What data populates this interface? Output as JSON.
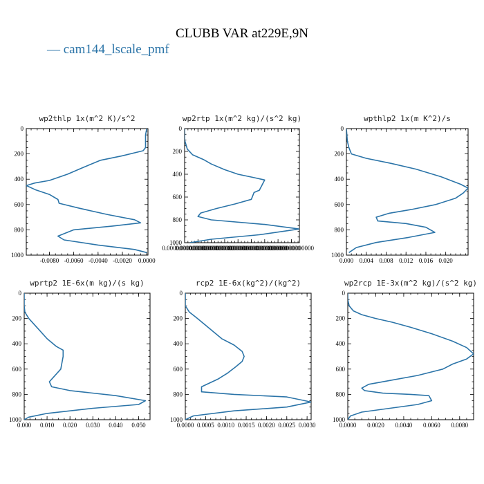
{
  "figure": {
    "title": "CLUBB VAR at229E,9N",
    "legend": [
      {
        "label": "— cam144_lscale_pmf",
        "color": "#2b74a8"
      }
    ]
  },
  "chart_data": [
    {
      "type": "line",
      "title": "wp2thlp  1x(m^2 K)/s^2",
      "xlim": [
        -0.0099,
        0.0001
      ],
      "ylim": [
        0,
        1000
      ],
      "y_inverted": true,
      "xticks": [
        -0.008,
        -0.006,
        -0.004,
        -0.002,
        0.0
      ],
      "xtick_labels": [
        "-0.0080",
        "-0.0060",
        "-0.0040",
        "-0.0020",
        "0.0000"
      ],
      "yticks": [
        0,
        200,
        400,
        600,
        800,
        1000
      ],
      "ytick_labels": [
        "0",
        "200",
        "400",
        "600",
        "800",
        "1000"
      ],
      "series": [
        {
          "color": "#2b74a8",
          "x": [
            0.0,
            -0.0001,
            -0.0001,
            -0.0001,
            -0.0003,
            -0.002,
            -0.0038,
            -0.0053,
            -0.0065,
            -0.008,
            -0.0092,
            -0.0099,
            -0.0091,
            -0.008,
            -0.0073,
            -0.0072,
            -0.0055,
            -0.0032,
            -0.001,
            -0.0005,
            -0.0028,
            -0.006,
            -0.0073,
            -0.0068,
            -0.004,
            -0.001,
            0.0
          ],
          "y": [
            0,
            50,
            100,
            150,
            175,
            215,
            250,
            310,
            360,
            410,
            430,
            450,
            485,
            520,
            560,
            590,
            630,
            680,
            720,
            745,
            770,
            800,
            850,
            880,
            920,
            955,
            980
          ]
        }
      ]
    },
    {
      "type": "line",
      "title": "wp2rtp  1x(m^2 kg)/(s^2 kg)",
      "xlim": [
        0,
        0.00043
      ],
      "ylim": [
        0,
        1000
      ],
      "y_inverted": true,
      "xticks": [
        0.0,
        5e-05,
        0.0001,
        0.00015,
        0.0002,
        0.00025,
        0.0003,
        0.00035,
        0.0004
      ],
      "xtick_labels": [
        "0.0000000000000",
        "0.0000000000000",
        "0.0000000000000",
        "0.0000000000000",
        "0.0000000000000",
        "0.0000000000000",
        "0.0000000000000",
        "0.0000000000000",
        "0.0000000000000"
      ],
      "yticks": [
        0,
        200,
        400,
        600,
        800,
        1000
      ],
      "ytick_labels": [
        "0",
        "200",
        "400",
        "600",
        "800",
        "1000"
      ],
      "series": [
        {
          "color": "#2b74a8",
          "x": [
            0.0,
            0.0,
            1e-05,
            3e-05,
            7e-05,
            0.0001,
            0.00015,
            0.0002,
            0.00026,
            0.0003,
            0.00028,
            0.00026,
            0.00025,
            0.00019,
            0.00012,
            6e-05,
            5e-05,
            0.0001,
            0.0003,
            0.00043,
            0.00028,
            0.0001,
            2e-05
          ],
          "y": [
            0,
            100,
            180,
            230,
            270,
            310,
            360,
            400,
            430,
            450,
            540,
            560,
            620,
            660,
            700,
            740,
            770,
            800,
            840,
            880,
            930,
            970,
            1000
          ]
        }
      ]
    },
    {
      "type": "line",
      "title": "wpthlp2  1x(m K^2)/s",
      "xlim": [
        0,
        0.0245
      ],
      "ylim": [
        0,
        1000
      ],
      "y_inverted": true,
      "xticks": [
        0.0,
        0.004,
        0.008,
        0.012,
        0.016,
        0.02
      ],
      "xtick_labels": [
        "0.000",
        "0.004",
        "0.008",
        "0.012",
        "0.016",
        "0.020"
      ],
      "yticks": [
        0,
        200,
        400,
        600,
        800,
        1000
      ],
      "ytick_labels": [
        "0",
        "200",
        "400",
        "600",
        "800",
        "1000"
      ],
      "series": [
        {
          "color": "#2b74a8",
          "x": [
            0.0,
            0.0002,
            0.0005,
            0.001,
            0.004,
            0.009,
            0.014,
            0.019,
            0.023,
            0.0245,
            0.0235,
            0.022,
            0.018,
            0.013,
            0.0085,
            0.006,
            0.0063,
            0.012,
            0.016,
            0.0178,
            0.0125,
            0.006,
            0.002,
            0.0005
          ],
          "y": [
            0,
            100,
            150,
            200,
            235,
            275,
            320,
            380,
            440,
            470,
            510,
            550,
            600,
            640,
            670,
            700,
            730,
            750,
            780,
            820,
            860,
            900,
            940,
            980
          ]
        }
      ]
    },
    {
      "type": "line",
      "title": "wprtp2  1E-6x(m kg)/(s kg)",
      "xlim": [
        0,
        0.055
      ],
      "ylim": [
        0,
        1000
      ],
      "y_inverted": true,
      "xticks": [
        0.0,
        0.01,
        0.02,
        0.03,
        0.04,
        0.05
      ],
      "xtick_labels": [
        "0.000",
        "0.010",
        "0.020",
        "0.030",
        "0.040",
        "0.050"
      ],
      "yticks": [
        0,
        200,
        400,
        600,
        800,
        1000
      ],
      "ytick_labels": [
        "0",
        "200",
        "400",
        "600",
        "800",
        "1000"
      ],
      "series": [
        {
          "color": "#2b74a8",
          "x": [
            0.0,
            0.0,
            0.0003,
            0.002,
            0.006,
            0.01,
            0.014,
            0.017,
            0.017,
            0.016,
            0.013,
            0.011,
            0.012,
            0.02,
            0.04,
            0.053,
            0.05,
            0.03,
            0.01,
            0.002,
            0.0
          ],
          "y": [
            0,
            100,
            150,
            200,
            280,
            360,
            420,
            450,
            500,
            600,
            660,
            700,
            740,
            770,
            810,
            850,
            880,
            910,
            950,
            980,
            1000
          ]
        }
      ]
    },
    {
      "type": "line",
      "title": "rcp2  1E-6x(kg^2)/(kg^2)",
      "xlim": [
        0,
        0.0031
      ],
      "ylim": [
        0,
        1000
      ],
      "y_inverted": true,
      "xticks": [
        0.0,
        0.0005,
        0.001,
        0.0015,
        0.002,
        0.0025,
        0.003
      ],
      "xtick_labels": [
        "0.0000",
        "0.0005",
        "0.0010",
        "0.0015",
        "0.0020",
        "0.0025",
        "0.0030"
      ],
      "yticks": [
        0,
        200,
        400,
        600,
        800,
        1000
      ],
      "ytick_labels": [
        "0",
        "200",
        "400",
        "600",
        "800",
        "1000"
      ],
      "series": [
        {
          "color": "#2b74a8",
          "x": [
            0.0,
            0.0,
            0.0001,
            0.0003,
            0.0006,
            0.0009,
            0.0012,
            0.0014,
            0.00145,
            0.0014,
            0.00125,
            0.00105,
            0.0008,
            0.0004,
            0.0004,
            0.0012,
            0.0025,
            0.0031,
            0.0025,
            0.0012,
            0.0002,
            0.0
          ],
          "y": [
            0,
            100,
            150,
            200,
            280,
            360,
            410,
            460,
            500,
            540,
            580,
            630,
            680,
            740,
            780,
            800,
            820,
            860,
            900,
            930,
            970,
            1000
          ]
        }
      ]
    },
    {
      "type": "line",
      "title": "wp2rcp  1E-3x(m^2 kg)/(s^2 kg)",
      "xlim": [
        0,
        0.009
      ],
      "ylim": [
        0,
        1000
      ],
      "y_inverted": true,
      "xticks": [
        0.0,
        0.002,
        0.004,
        0.006,
        0.008
      ],
      "xtick_labels": [
        "0.0000",
        "0.0020",
        "0.0040",
        "0.0060",
        "0.0080"
      ],
      "yticks": [
        0,
        200,
        400,
        600,
        800,
        1000
      ],
      "ytick_labels": [
        "0",
        "200",
        "400",
        "600",
        "800",
        "1000"
      ],
      "series": [
        {
          "color": "#2b74a8",
          "x": [
            0.0,
            0.0,
            0.0001,
            0.0004,
            0.001,
            0.002,
            0.0032,
            0.0045,
            0.006,
            0.0075,
            0.0085,
            0.009,
            0.0085,
            0.0075,
            0.0068,
            0.005,
            0.003,
            0.0015,
            0.001,
            0.0012,
            0.0025,
            0.0045,
            0.0058,
            0.006,
            0.005,
            0.003,
            0.001,
            0.0002,
            0.0
          ],
          "y": [
            0,
            50,
            100,
            140,
            170,
            200,
            230,
            270,
            320,
            380,
            430,
            480,
            520,
            560,
            600,
            650,
            690,
            720,
            750,
            770,
            790,
            800,
            810,
            850,
            880,
            910,
            940,
            970,
            1000
          ]
        }
      ]
    }
  ]
}
